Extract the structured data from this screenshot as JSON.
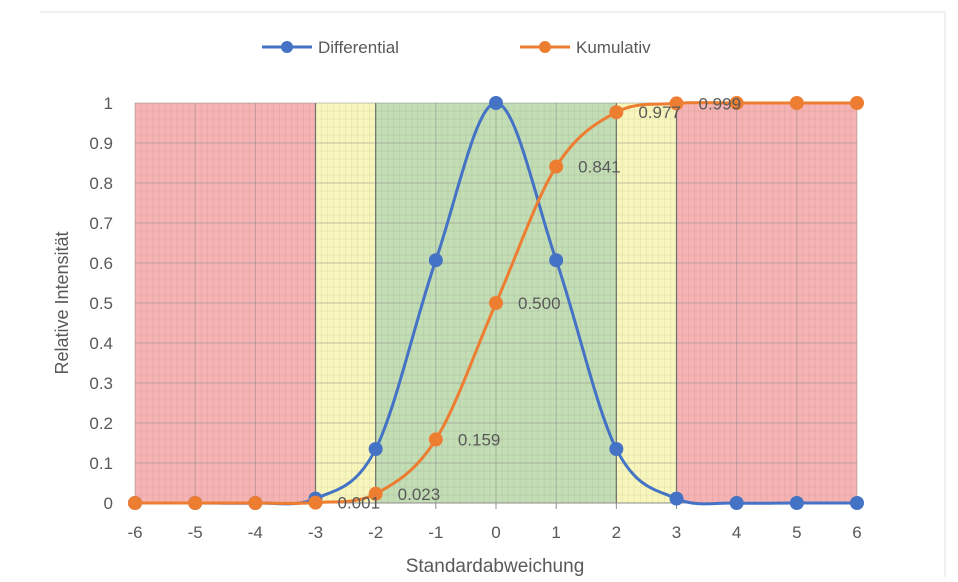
{
  "chart_data": {
    "type": "line",
    "xlabel": "Standardabweichung",
    "ylabel": "Relative Intensität",
    "xlim": [
      -6,
      6
    ],
    "ylim": [
      0,
      1
    ],
    "x_ticks": [
      "-6",
      "-5",
      "-4",
      "-3",
      "-2",
      "-1",
      "0",
      "1",
      "2",
      "3",
      "4",
      "5",
      "6"
    ],
    "y_ticks": [
      "0",
      "0.1",
      "0.2",
      "0.3",
      "0.4",
      "0.5",
      "0.6",
      "0.7",
      "0.8",
      "0.9",
      "1"
    ],
    "grid": true,
    "legend_position": "top",
    "x": [
      -6,
      -5,
      -4,
      -3,
      -2,
      -1,
      0,
      1,
      2,
      3,
      4,
      5,
      6
    ],
    "series": [
      {
        "name": "Differential",
        "color": "#4472c4",
        "values": [
          0,
          0,
          0,
          0.011,
          0.135,
          0.607,
          1,
          0.607,
          0.135,
          0.011,
          0,
          0,
          0
        ]
      },
      {
        "name": "Kumulativ",
        "color": "#ed7d31",
        "values": [
          0,
          0,
          0,
          0.001,
          0.023,
          0.159,
          0.5,
          0.841,
          0.977,
          0.999,
          1,
          1,
          1
        ]
      }
    ],
    "data_labels": [
      {
        "x": -3,
        "y": 0.001,
        "text": "0.001"
      },
      {
        "x": -2,
        "y": 0.023,
        "text": "0.023"
      },
      {
        "x": -1,
        "y": 0.159,
        "text": "0.159"
      },
      {
        "x": 0,
        "y": 0.5,
        "text": "0.500"
      },
      {
        "x": 1,
        "y": 0.841,
        "text": "0.841"
      },
      {
        "x": 2,
        "y": 0.977,
        "text": "0.977"
      },
      {
        "x": 3,
        "y": 0.999,
        "text": "0.999"
      }
    ],
    "bands": [
      {
        "from": -6,
        "to": -3,
        "color": "#f4a6a6"
      },
      {
        "from": -3,
        "to": -2,
        "color": "#f7f5b0"
      },
      {
        "from": -2,
        "to": 2,
        "color": "#b9d7a8"
      },
      {
        "from": 2,
        "to": 3,
        "color": "#f7f5b0"
      },
      {
        "from": 3,
        "to": 6,
        "color": "#f4a6a6"
      }
    ]
  }
}
